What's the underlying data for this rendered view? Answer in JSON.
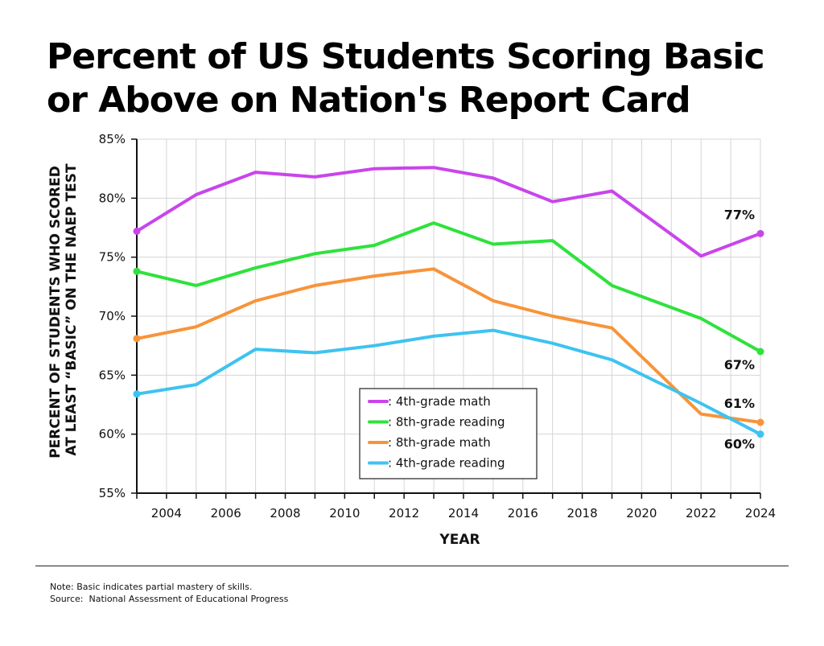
{
  "title_lines": [
    "Percent of US Students Scoring Basic",
    "or Above on Nation's Report Card"
  ],
  "notes": {
    "note": "Note: Basic indicates partial mastery of skills.",
    "source": "Source:  National Assessment of Educational Progress"
  },
  "chart_data": {
    "type": "line",
    "xlabel": "YEAR",
    "ylabel_lines": [
      "PERCENT OF STUDENTS WHO SCORED",
      "AT LEAST “BASIC” ON THE NAEP TEST"
    ],
    "xlim": [
      2003,
      2024
    ],
    "ylim": [
      55,
      85
    ],
    "x_ticks": [
      2004,
      2006,
      2008,
      2010,
      2012,
      2014,
      2016,
      2018,
      2020,
      2022,
      2024
    ],
    "y_ticks": [
      55,
      60,
      65,
      70,
      75,
      80,
      85
    ],
    "y_tick_labels": [
      "55%",
      "60%",
      "65%",
      "70%",
      "75%",
      "80%",
      "85%"
    ],
    "grid": true,
    "legend_position": "lower-center",
    "series": [
      {
        "name": ": 4th-grade math",
        "color": "#c845ec",
        "x": [
          2003,
          2005,
          2007,
          2009,
          2011,
          2013,
          2015,
          2017,
          2019,
          2022,
          2024
        ],
        "values": [
          77.2,
          80.3,
          82.2,
          81.8,
          82.5,
          82.6,
          81.7,
          79.7,
          80.6,
          75.1,
          77.0
        ],
        "end_label": "77%"
      },
      {
        "name": ": 8th-grade reading",
        "color": "#2ee23c",
        "x": [
          2003,
          2005,
          2007,
          2009,
          2011,
          2013,
          2015,
          2017,
          2019,
          2022,
          2024
        ],
        "values": [
          73.8,
          72.6,
          74.1,
          75.3,
          76.0,
          77.9,
          76.1,
          76.4,
          72.6,
          69.8,
          67.0
        ],
        "end_label": "67%"
      },
      {
        "name": ": 8th-grade math",
        "color": "#f7943a",
        "x": [
          2003,
          2005,
          2007,
          2009,
          2011,
          2013,
          2015,
          2017,
          2019,
          2022,
          2024
        ],
        "values": [
          68.1,
          69.1,
          71.3,
          72.6,
          73.4,
          74.0,
          71.3,
          70.0,
          69.0,
          61.7,
          61.0
        ],
        "end_label": "61%"
      },
      {
        "name": ": 4th-grade reading",
        "color": "#3ec3f0",
        "x": [
          2003,
          2005,
          2007,
          2009,
          2011,
          2013,
          2015,
          2017,
          2019,
          2022,
          2024
        ],
        "values": [
          63.4,
          64.2,
          67.2,
          66.9,
          67.5,
          68.3,
          68.8,
          67.7,
          66.3,
          62.6,
          60.0
        ],
        "end_label": "60%"
      }
    ]
  }
}
